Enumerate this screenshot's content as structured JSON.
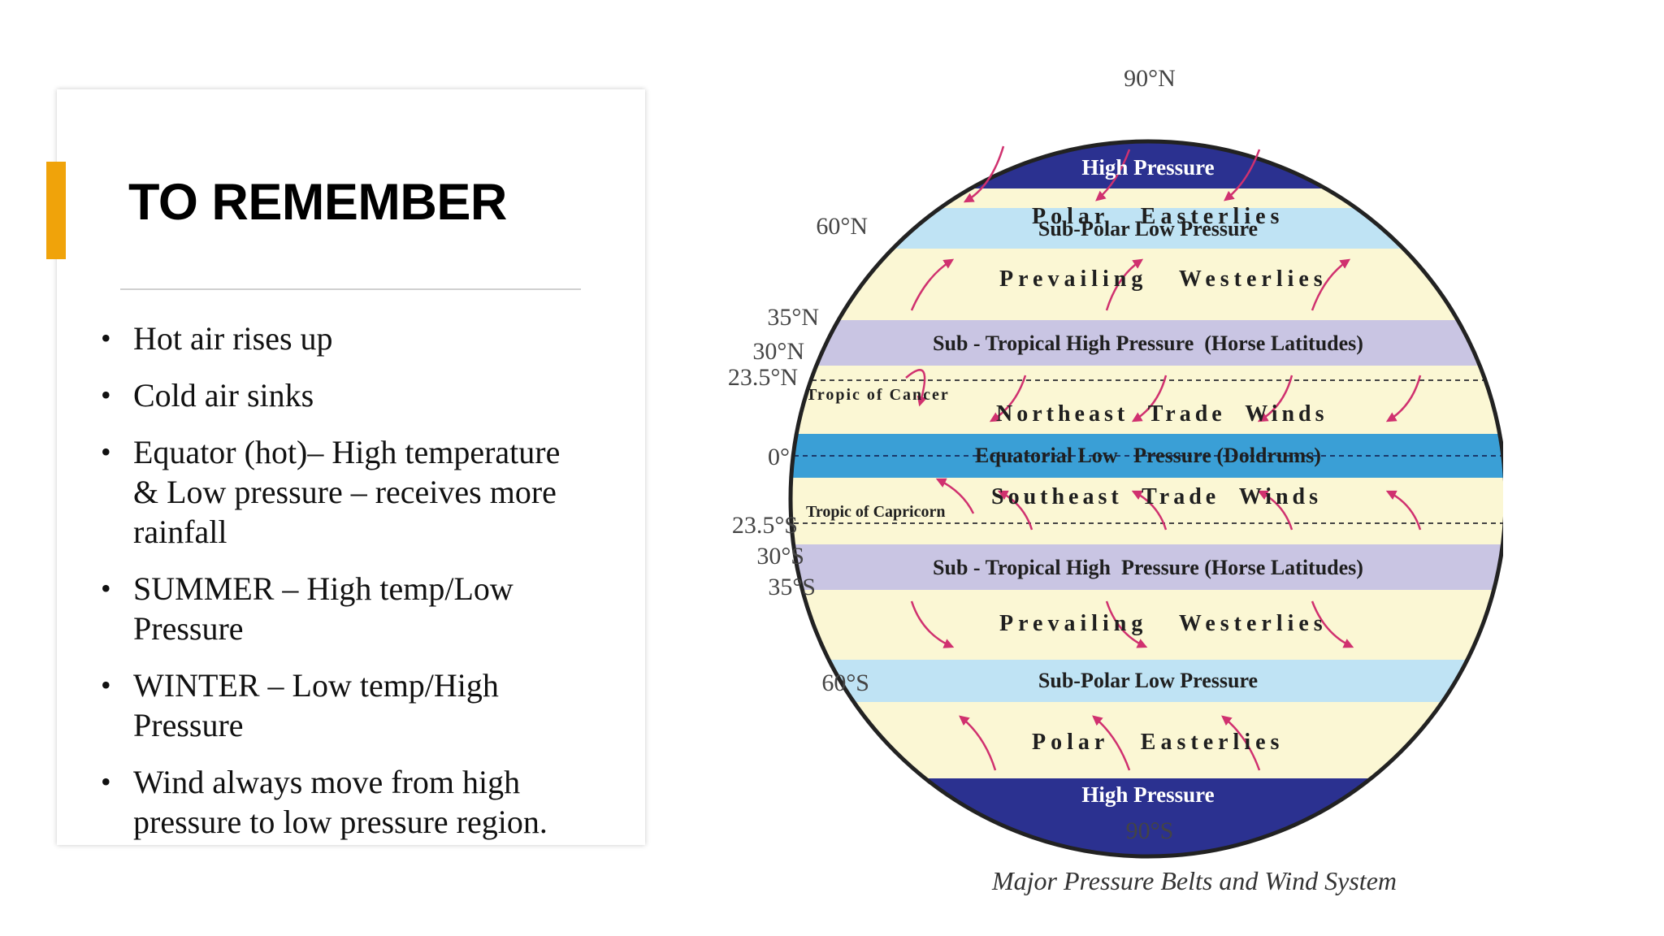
{
  "slide": {
    "title": "TO REMEMBER",
    "accent_color": "#f0a30a",
    "bullets": [
      "Hot air rises up",
      "Cold air sinks",
      "Equator (hot)– High temperature & Low pressure – receives more rainfall",
      "SUMMER – High temp/Low Pressure",
      "WINTER – Low temp/High Pressure",
      "Wind always move from high pressure to low pressure region."
    ]
  },
  "diagram": {
    "caption": "Major Pressure Belts and Wind System",
    "latitudes": {
      "n90": "90°N",
      "n60": "60°N",
      "n35": "35°N",
      "n30": "30°N",
      "n23": "23.5°N",
      "eq": "0°",
      "s23": "23.5°S",
      "s30": "30°S",
      "s35": "35°S",
      "s60": "60°S",
      "s90": "90°S"
    },
    "belts": {
      "high_n": "High Pressure",
      "polar_e_n": "Polar   Easterlies",
      "subpolar_n": "Sub-Polar Low Pressure",
      "westerlies_n": "Prevailing   Westerlies",
      "subtrop_n": "Sub - Tropical High Pressure  (Horse Latitudes)",
      "tropic_cancer": "Tropic of Cancer",
      "ne_trade": "Northeast  Trade  Winds",
      "equatorial": "Equatorial Low   Pressure (Doldrums)",
      "se_trade": "Southeast  Trade  Winds",
      "tropic_capricorn": "Tropic of Capricorn",
      "subtrop_s": "Sub - Tropical High  Pressure (Horse Latitudes)",
      "westerlies_s": "Prevailing   Westerlies",
      "subpolar_s": "Sub-Polar Low Pressure",
      "polar_e_s": "Polar   Easterlies",
      "high_s": "High Pressure"
    },
    "colors": {
      "high": "#2b3190",
      "cream": "#fbf7d4",
      "subpolar": "#bfe3f4",
      "subtropical": "#c9c5e3",
      "equatorial": "#3a9fd6",
      "arrow": "#d0316f"
    }
  }
}
